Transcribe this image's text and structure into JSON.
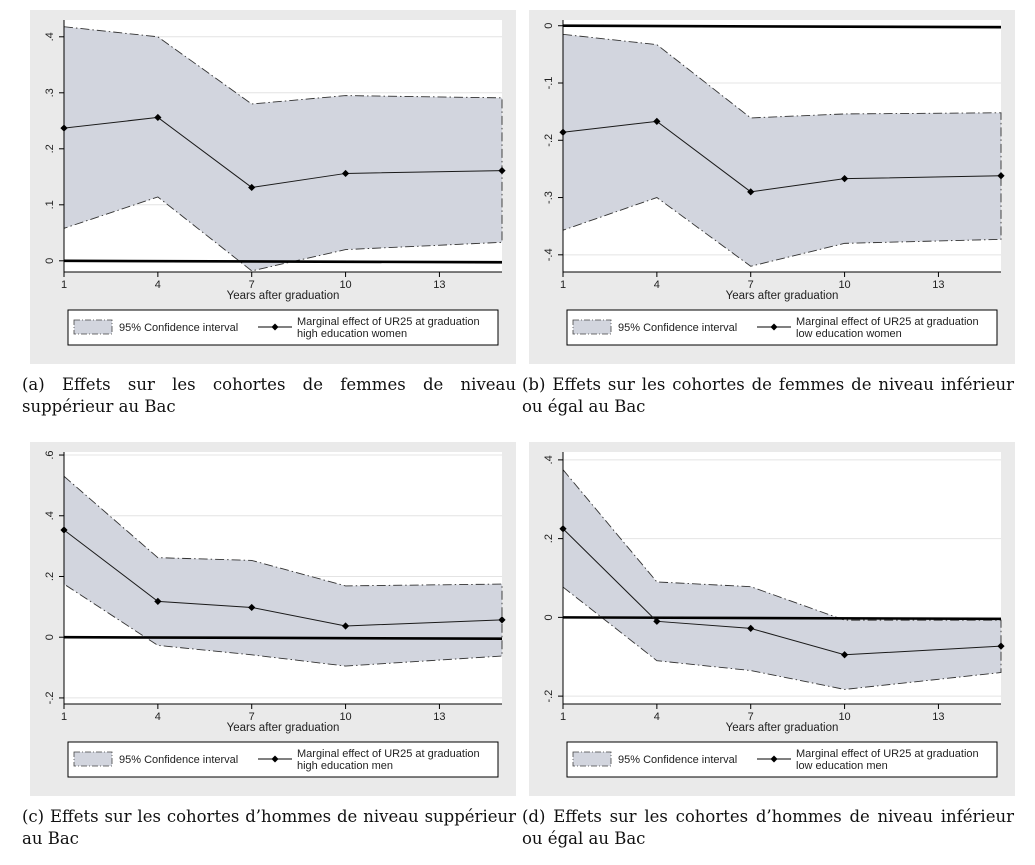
{
  "charts": [
    {
      "caption": "(a) Effets sur les cohortes de femmes de niveau suppérieur au Bac",
      "chart_data": {
        "type": "line",
        "xlabel": "Years after graduation",
        "ylabel": "",
        "xticks": [
          1,
          4,
          7,
          10,
          13
        ],
        "xlim": [
          1,
          15
        ],
        "yticks": [
          0,
          0.1,
          0.2,
          0.3,
          0.4
        ],
        "ytick_labels": [
          "0",
          ".1",
          ".2",
          ".3",
          ".4"
        ],
        "ylim": [
          -0.02,
          0.43
        ],
        "x": [
          1,
          4,
          7,
          10,
          15
        ],
        "series": [
          {
            "name": "Marginal effect of UR25 at graduation high education women",
            "values": [
              0.237,
              0.256,
              0.131,
              0.156,
              0.161
            ]
          },
          {
            "name": "95% Confidence interval (upper)",
            "values": [
              0.418,
              0.4,
              0.28,
              0.295,
              0.291
            ]
          },
          {
            "name": "95% Confidence interval (lower)",
            "values": [
              0.058,
              0.114,
              -0.018,
              0.02,
              0.033
            ]
          }
        ],
        "reference_line": {
          "y": 0
        },
        "legend": {
          "position": "bottom",
          "ci_label": "95% Confidence interval",
          "line_label_1": "Marginal effect of UR25 at graduation",
          "line_label_2": "high education women"
        }
      }
    },
    {
      "caption": "(b) Effets sur les cohortes de femmes de niveau inférieur ou égal au Bac",
      "chart_data": {
        "type": "line",
        "xlabel": "Years after graduation",
        "ylabel": "",
        "xticks": [
          1,
          4,
          7,
          10,
          13
        ],
        "xlim": [
          1,
          15
        ],
        "yticks": [
          0,
          -0.1,
          -0.2,
          -0.3,
          -0.4
        ],
        "ytick_labels": [
          "0",
          "-.1",
          "-.2",
          "-.3",
          "-.4"
        ],
        "ylim": [
          -0.43,
          0.01
        ],
        "x": [
          1,
          4,
          7,
          10,
          15
        ],
        "series": [
          {
            "name": "Marginal effect of UR25 at graduation low education women",
            "values": [
              -0.186,
              -0.167,
              -0.29,
              -0.267,
              -0.262
            ]
          },
          {
            "name": "95% Confidence interval (upper)",
            "values": [
              -0.015,
              -0.033,
              -0.161,
              -0.154,
              -0.152
            ]
          },
          {
            "name": "95% Confidence interval (lower)",
            "values": [
              -0.357,
              -0.3,
              -0.42,
              -0.38,
              -0.373
            ]
          }
        ],
        "reference_line": {
          "y": 0
        },
        "legend": {
          "position": "bottom",
          "ci_label": "95% Confidence interval",
          "line_label_1": "Marginal effect of UR25 at graduation",
          "line_label_2": "low education women"
        }
      }
    },
    {
      "caption": "(c) Effets sur les cohortes d’hommes de niveau suppérieur au Bac",
      "chart_data": {
        "type": "line",
        "xlabel": "Years after graduation",
        "ylabel": "",
        "xticks": [
          1,
          4,
          7,
          10,
          13
        ],
        "xlim": [
          1,
          15
        ],
        "yticks": [
          -0.2,
          0,
          0.2,
          0.4,
          0.6
        ],
        "ytick_labels": [
          "-.2",
          "0",
          ".2",
          ".4",
          ".6"
        ],
        "ylim": [
          -0.22,
          0.61
        ],
        "x": [
          1,
          4,
          7,
          10,
          15
        ],
        "series": [
          {
            "name": "Marginal effect of UR25 at graduation high education men",
            "values": [
              0.353,
              0.118,
              0.098,
              0.037,
              0.057
            ]
          },
          {
            "name": "95% Confidence interval (upper)",
            "values": [
              0.53,
              0.262,
              0.253,
              0.169,
              0.175
            ]
          },
          {
            "name": "95% Confidence interval (lower)",
            "values": [
              0.175,
              -0.027,
              -0.058,
              -0.095,
              -0.062
            ]
          }
        ],
        "reference_line": {
          "y": 0
        },
        "legend": {
          "position": "bottom",
          "ci_label": "95% Confidence interval",
          "line_label_1": "Marginal effect of UR25 at graduation",
          "line_label_2": "high education men"
        }
      }
    },
    {
      "caption": "(d) Effets sur les cohortes d’hommes de niveau inférieur ou égal au Bac",
      "chart_data": {
        "type": "line",
        "xlabel": "Years after graduation",
        "ylabel": "",
        "xticks": [
          1,
          4,
          7,
          10,
          13
        ],
        "xlim": [
          1,
          15
        ],
        "yticks": [
          -0.2,
          0,
          0.2,
          0.4
        ],
        "ytick_labels": [
          "-.2",
          "0",
          ".2",
          ".4"
        ],
        "ylim": [
          -0.22,
          0.42
        ],
        "x": [
          1,
          4,
          7,
          10,
          15
        ],
        "series": [
          {
            "name": "Marginal effect of UR25 at graduation low education men",
            "values": [
              0.225,
              -0.01,
              -0.028,
              -0.095,
              -0.073
            ]
          },
          {
            "name": "95% Confidence interval (upper)",
            "values": [
              0.375,
              0.09,
              0.078,
              -0.007,
              -0.007
            ]
          },
          {
            "name": "95% Confidence interval (lower)",
            "values": [
              0.077,
              -0.11,
              -0.135,
              -0.183,
              -0.14
            ]
          }
        ],
        "reference_line": {
          "y": 0
        },
        "legend": {
          "position": "bottom",
          "ci_label": "95% Confidence interval",
          "line_label_1": "Marginal effect of UR25 at graduation",
          "line_label_2": "low education men"
        }
      }
    }
  ],
  "colors": {
    "panel_bg": "#eaeaea",
    "plot_bg": "#ffffff",
    "ci_fill": "#d2d5de",
    "line": "#1a1a1a",
    "grid": "#e4e4e4"
  }
}
